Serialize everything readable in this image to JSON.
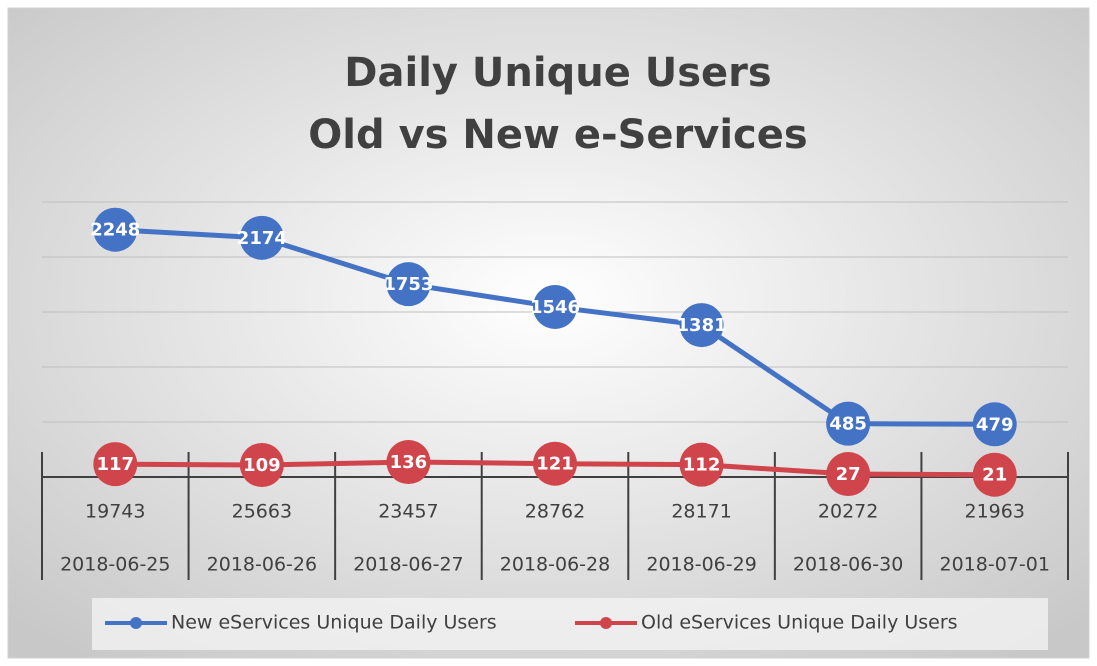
{
  "chart_data": {
    "type": "line",
    "title": [
      "Daily Unique Users",
      "Old vs New e-Services"
    ],
    "categories": [
      "2018-06-25",
      "2018-06-26",
      "2018-06-27",
      "2018-06-28",
      "2018-06-29",
      "2018-06-30",
      "2018-07-01"
    ],
    "category_sublabels": [
      "19743",
      "25663",
      "23457",
      "28762",
      "28171",
      "20272",
      "21963"
    ],
    "series": [
      {
        "name": "New eServices Unique Daily Users",
        "color": "#4472c4",
        "values": [
          2248,
          2174,
          1753,
          1546,
          1381,
          485,
          479
        ]
      },
      {
        "name": "Old eServices Unique Daily Users",
        "color": "#d0454c",
        "values": [
          117,
          109,
          136,
          121,
          112,
          27,
          21
        ]
      }
    ],
    "ylim": [
      0,
      2500
    ],
    "yticks": [
      0,
      500,
      1000,
      1500,
      2000,
      2500
    ],
    "grid": true,
    "legend": "bottom"
  }
}
